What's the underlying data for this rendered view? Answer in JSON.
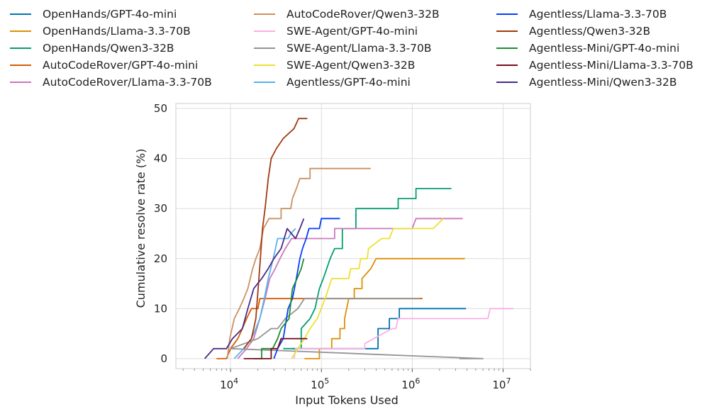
{
  "chart_data": {
    "type": "line",
    "title": "",
    "xlabel": "Input Tokens Used",
    "ylabel": "Cumulative resolve rate (%)",
    "xscale": "log",
    "xlim": [
      2500,
      20000000
    ],
    "ylim": [
      -2,
      51
    ],
    "yticks": [
      0,
      10,
      20,
      30,
      40,
      50
    ],
    "xticks": [
      {
        "value": 10000,
        "base": "10",
        "exp": "4"
      },
      {
        "value": 100000,
        "base": "10",
        "exp": "5"
      },
      {
        "value": 1000000,
        "base": "10",
        "exp": "6"
      },
      {
        "value": 10000000,
        "base": "10",
        "exp": "7"
      }
    ],
    "grid": true,
    "legend_position": "top",
    "series": [
      {
        "name": "OpenHands/GPT-4o-mini",
        "color": "#0173b2",
        "points": [
          [
            47000,
            2
          ],
          [
            300000,
            2
          ],
          [
            420000,
            2
          ],
          [
            420000,
            6
          ],
          [
            560000,
            6
          ],
          [
            560000,
            8
          ],
          [
            720000,
            8
          ],
          [
            720000,
            10
          ],
          [
            3900000,
            10
          ]
        ]
      },
      {
        "name": "OpenHands/Llama-3.3-70B",
        "color": "#de8f05",
        "points": [
          [
            65000,
            0
          ],
          [
            95000,
            0
          ],
          [
            95000,
            2
          ],
          [
            130000,
            2
          ],
          [
            130000,
            4
          ],
          [
            160000,
            4
          ],
          [
            160000,
            6
          ],
          [
            180000,
            6
          ],
          [
            180000,
            8
          ],
          [
            200000,
            12
          ],
          [
            230000,
            12
          ],
          [
            230000,
            14
          ],
          [
            280000,
            14
          ],
          [
            280000,
            16
          ],
          [
            350000,
            18
          ],
          [
            400000,
            20
          ],
          [
            3800000,
            20
          ]
        ]
      },
      {
        "name": "OpenHands/Qwen3-32B",
        "color": "#029e73",
        "points": [
          [
            38000,
            2
          ],
          [
            60000,
            2
          ],
          [
            60000,
            6
          ],
          [
            75000,
            8
          ],
          [
            85000,
            10
          ],
          [
            95000,
            14
          ],
          [
            105000,
            16
          ],
          [
            125000,
            20
          ],
          [
            140000,
            22
          ],
          [
            170000,
            22
          ],
          [
            170000,
            26
          ],
          [
            240000,
            26
          ],
          [
            240000,
            30
          ],
          [
            700000,
            30
          ],
          [
            700000,
            32
          ],
          [
            1100000,
            32
          ],
          [
            1100000,
            34
          ],
          [
            2700000,
            34
          ]
        ]
      },
      {
        "name": "AutoCodeRover/GPT-4o-mini",
        "color": "#d55e00",
        "points": [
          [
            7000,
            0
          ],
          [
            9000,
            0
          ],
          [
            10000,
            2
          ],
          [
            12000,
            4
          ],
          [
            13500,
            6
          ],
          [
            15000,
            8
          ],
          [
            17000,
            10
          ],
          [
            20000,
            10
          ],
          [
            21000,
            12
          ],
          [
            23000,
            12
          ],
          [
            25000,
            12
          ],
          [
            27000,
            12
          ],
          [
            1300000,
            12
          ]
        ]
      },
      {
        "name": "AutoCodeRover/Llama-3.3-70B",
        "color": "#cc78bc",
        "points": [
          [
            12000,
            0
          ],
          [
            15000,
            2
          ],
          [
            18000,
            4
          ],
          [
            21000,
            8
          ],
          [
            24000,
            12
          ],
          [
            27000,
            16
          ],
          [
            31000,
            18
          ],
          [
            35000,
            20
          ],
          [
            40000,
            22
          ],
          [
            47000,
            24
          ],
          [
            140000,
            24
          ],
          [
            140000,
            26
          ],
          [
            850000,
            26
          ],
          [
            1000000,
            26
          ],
          [
            1100000,
            28
          ],
          [
            3600000,
            28
          ]
        ]
      },
      {
        "name": "AutoCodeRover/Qwen3-32B",
        "color": "#ca9161",
        "points": [
          [
            9200,
            0
          ],
          [
            9800,
            4
          ],
          [
            11000,
            8
          ],
          [
            12500,
            10
          ],
          [
            14000,
            12
          ],
          [
            15500,
            14
          ],
          [
            17500,
            18
          ],
          [
            19000,
            20
          ],
          [
            21000,
            22
          ],
          [
            23000,
            26
          ],
          [
            26500,
            28
          ],
          [
            36000,
            28
          ],
          [
            36000,
            30
          ],
          [
            46000,
            30
          ],
          [
            48000,
            32
          ],
          [
            53000,
            34
          ],
          [
            58000,
            36
          ],
          [
            75000,
            36
          ],
          [
            75000,
            38
          ],
          [
            350000,
            38
          ]
        ]
      },
      {
        "name": "SWE-Agent/GPT-4o-mini",
        "color": "#fbafe4",
        "points": [
          [
            50000,
            0
          ],
          [
            52000,
            2
          ],
          [
            300000,
            2
          ],
          [
            300000,
            3
          ],
          [
            600000,
            6
          ],
          [
            660000,
            6
          ],
          [
            700000,
            8
          ],
          [
            6800000,
            8
          ],
          [
            7200000,
            10
          ],
          [
            13000000,
            10
          ]
        ]
      },
      {
        "name": "SWE-Agent/Llama-3.3-70B",
        "color": "#949494",
        "points": [
          [
            3300000,
            0
          ],
          [
            5400000,
            0
          ],
          [
            6000000,
            0
          ],
          [
            10000,
            2
          ],
          [
            20000,
            4
          ],
          [
            28000,
            6
          ],
          [
            33000,
            6
          ],
          [
            40000,
            8
          ],
          [
            55000,
            10
          ],
          [
            65000,
            12
          ],
          [
            1200000,
            12
          ]
        ]
      },
      {
        "name": "SWE-Agent/Qwen3-32B",
        "color": "#ece133",
        "points": [
          [
            47000,
            0
          ],
          [
            55000,
            2
          ],
          [
            65000,
            4
          ],
          [
            75000,
            6
          ],
          [
            90000,
            8
          ],
          [
            110000,
            12
          ],
          [
            130000,
            16
          ],
          [
            200000,
            16
          ],
          [
            210000,
            18
          ],
          [
            260000,
            18
          ],
          [
            270000,
            20
          ],
          [
            320000,
            20
          ],
          [
            330000,
            22
          ],
          [
            460000,
            24
          ],
          [
            560000,
            24
          ],
          [
            620000,
            26
          ],
          [
            1700000,
            26
          ],
          [
            2200000,
            28
          ]
        ]
      },
      {
        "name": "Agentless/GPT-4o-mini",
        "color": "#56b4e9",
        "points": [
          [
            11000,
            0
          ],
          [
            14000,
            2
          ],
          [
            17000,
            4
          ],
          [
            19000,
            6
          ],
          [
            21000,
            8
          ],
          [
            23500,
            12
          ],
          [
            26000,
            16
          ],
          [
            29500,
            20
          ],
          [
            33000,
            24
          ],
          [
            43000,
            24
          ],
          [
            46000,
            25
          ],
          [
            52000,
            26
          ]
        ]
      },
      {
        "name": "Agentless/Llama-3.3-70B",
        "color": "#023eff",
        "points": [
          [
            30000,
            0
          ],
          [
            33000,
            2
          ],
          [
            38000,
            4
          ],
          [
            43000,
            10
          ],
          [
            48000,
            12
          ],
          [
            53000,
            16
          ],
          [
            58000,
            20
          ],
          [
            62000,
            22
          ],
          [
            68000,
            24
          ],
          [
            73000,
            26
          ],
          [
            95000,
            26
          ],
          [
            100000,
            28
          ],
          [
            160000,
            28
          ]
        ]
      },
      {
        "name": "Agentless/Qwen3-32B",
        "color": "#a23a10",
        "points": [
          [
            14000,
            2
          ],
          [
            17000,
            4
          ],
          [
            19000,
            8
          ],
          [
            20500,
            16
          ],
          [
            22500,
            26
          ],
          [
            24000,
            30
          ],
          [
            26000,
            36
          ],
          [
            28000,
            40
          ],
          [
            32000,
            42
          ],
          [
            38000,
            44
          ],
          [
            50000,
            46
          ],
          [
            56000,
            48
          ],
          [
            70000,
            48
          ]
        ]
      },
      {
        "name": "Agentless-Mini/GPT-4o-mini",
        "color": "#1a8e2f",
        "points": [
          [
            18000,
            0
          ],
          [
            22000,
            0
          ],
          [
            22000,
            2
          ],
          [
            29000,
            2
          ],
          [
            33000,
            4
          ],
          [
            36000,
            6
          ],
          [
            44000,
            8
          ],
          [
            48000,
            14
          ],
          [
            54000,
            16
          ],
          [
            60000,
            18
          ],
          [
            64000,
            20
          ]
        ]
      },
      {
        "name": "Agentless-Mini/Llama-3.3-70B",
        "color": "#7a0e1f",
        "points": [
          [
            14000,
            0
          ],
          [
            28000,
            0
          ],
          [
            28000,
            2
          ],
          [
            33000,
            2
          ],
          [
            36000,
            4
          ],
          [
            55000,
            4
          ],
          [
            70000,
            4
          ]
        ]
      },
      {
        "name": "Agentless-Mini/Qwen3-32B",
        "color": "#4b2a8a",
        "points": [
          [
            5200,
            0
          ],
          [
            6500,
            2
          ],
          [
            9000,
            2
          ],
          [
            10500,
            4
          ],
          [
            13500,
            6
          ],
          [
            15500,
            10
          ],
          [
            18000,
            14
          ],
          [
            22000,
            16
          ],
          [
            26000,
            18
          ],
          [
            30000,
            20
          ],
          [
            36000,
            22
          ],
          [
            42000,
            26
          ],
          [
            52000,
            24
          ],
          [
            58000,
            26
          ],
          [
            64000,
            28
          ]
        ]
      }
    ]
  }
}
